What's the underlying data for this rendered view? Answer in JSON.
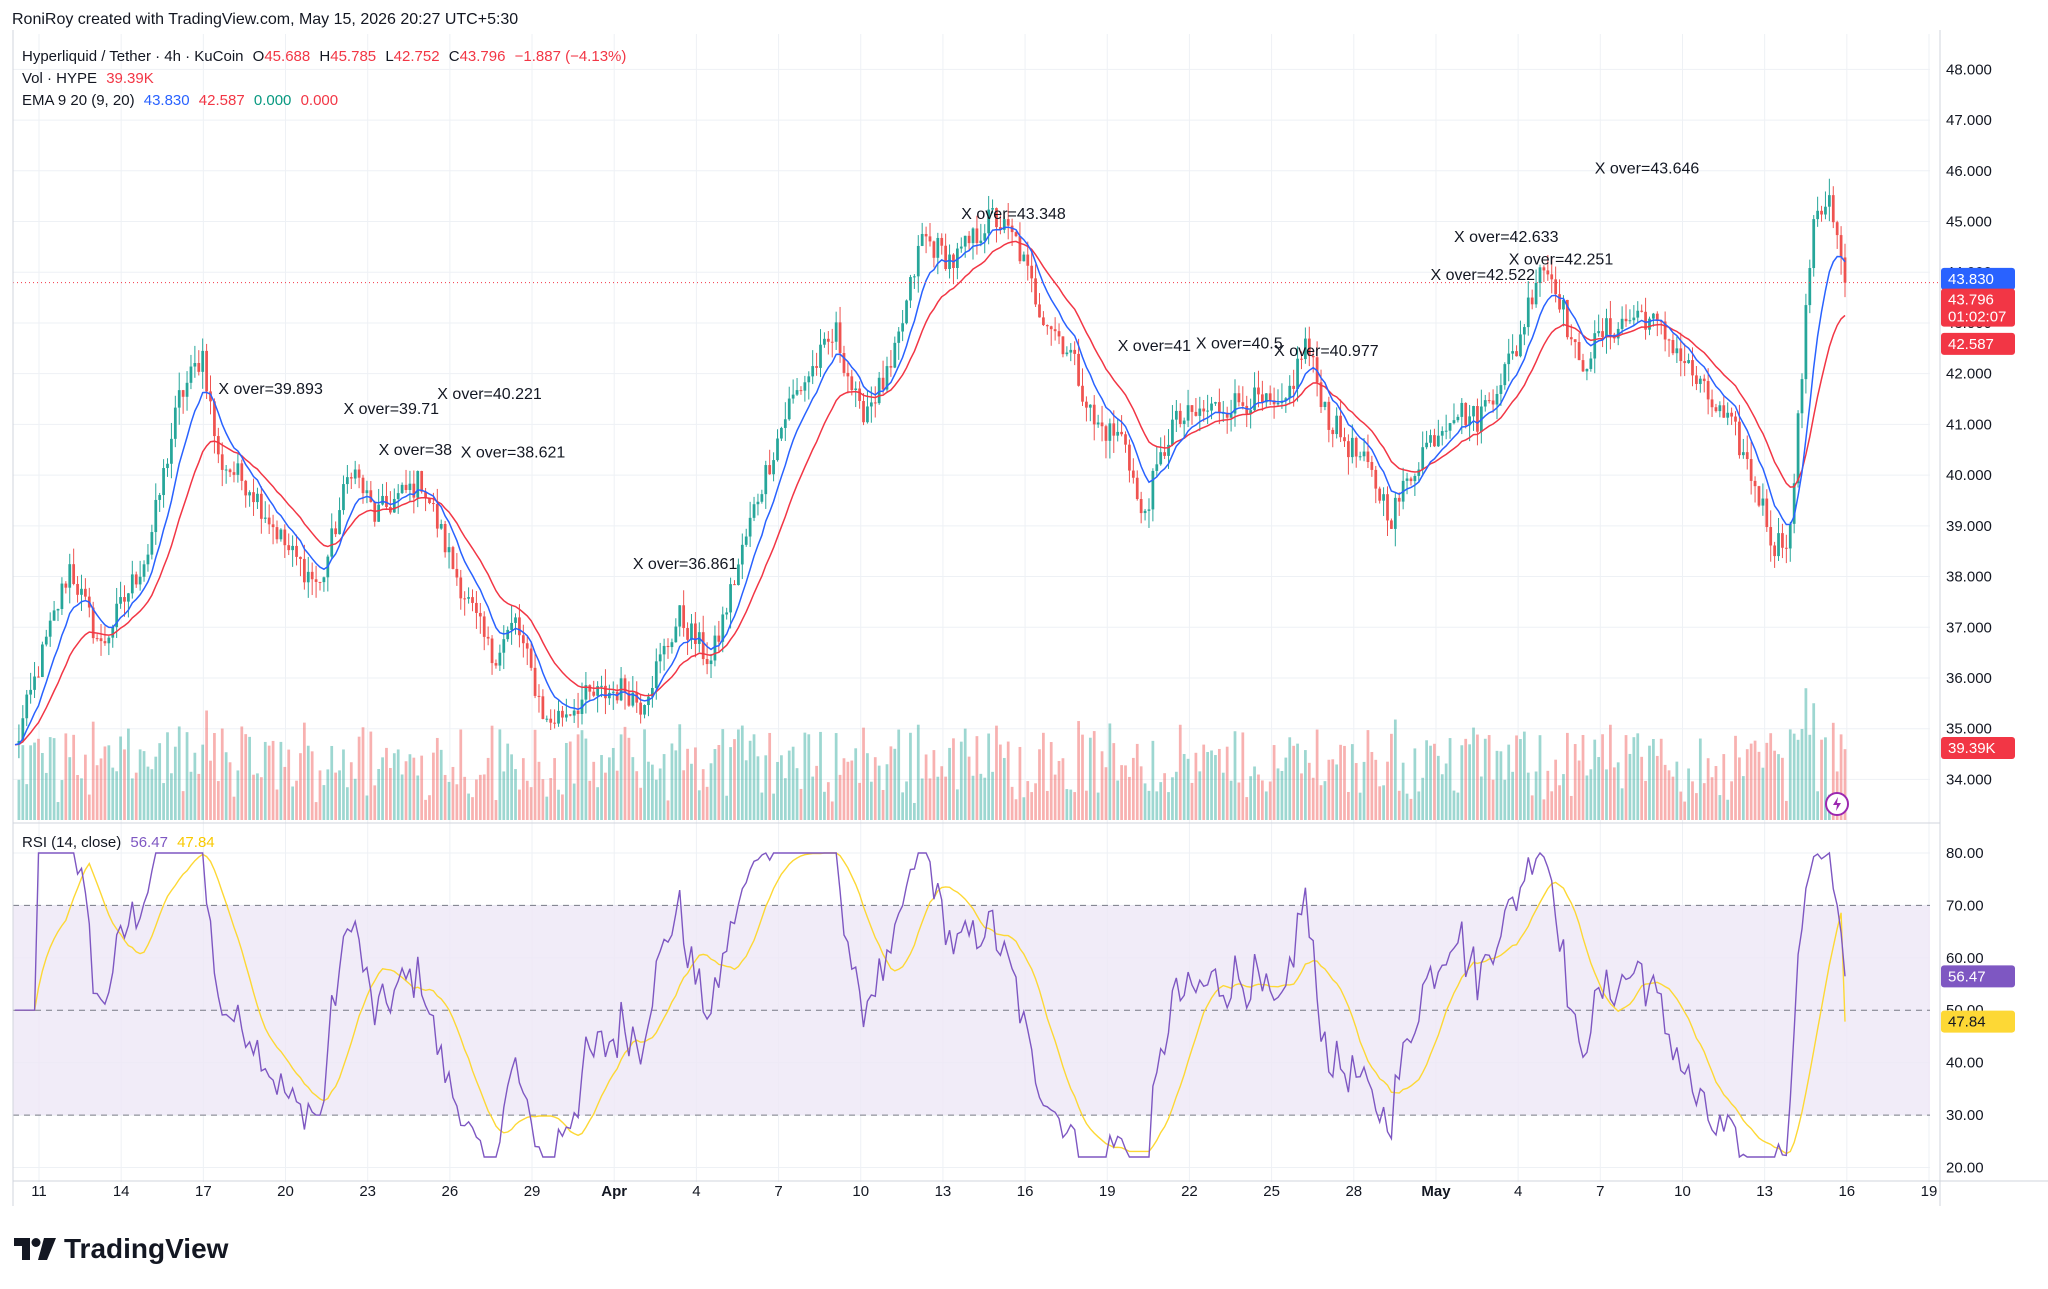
{
  "header": {
    "author_line": "RoniRoy created with TradingView.com, May 15, 2026 20:27 UTC+5:30",
    "symbol_line": "Hyperliquid / Tether · 4h · KuCoin",
    "open_label": "O",
    "open_value": "45.688",
    "high_label": "H",
    "high_value": "45.785",
    "low_label": "L",
    "low_value": "42.752",
    "close_label": "C",
    "close_value": "43.796",
    "change_value": "−1.887 (−4.13%)",
    "vol_label": "Vol · HYPE",
    "vol_value": "39.39K",
    "ema_label": "EMA 9 20 (9, 20)",
    "ema_values": [
      "43.830",
      "42.587",
      "0.000",
      "0.000"
    ],
    "rsi_label": "RSI (14, close)",
    "rsi_value": "56.47",
    "rsi_ma_value": "47.84"
  },
  "footer": {
    "brand": "TradingView"
  },
  "colors": {
    "up": "#26a69a",
    "down": "#ef5350",
    "ema_fast": "#2962ff",
    "ema_slow": "#f23645",
    "rsi": "#7e57c2",
    "rsi_ma": "#fdd835",
    "rsi_band": "#ede7f6",
    "grid": "#eef1f5"
  },
  "chart_data": {
    "type": "candlestick",
    "price_axis": {
      "ticks": [
        "48.000",
        "47.000",
        "46.000",
        "45.000",
        "44.000",
        "43.000",
        "42.000",
        "41.000",
        "40.000",
        "39.000",
        "38.000",
        "37.000",
        "36.000",
        "35.000",
        "34.000"
      ],
      "range": [
        33.2,
        48.5
      ]
    },
    "rsi_axis": {
      "ticks": [
        "80.00",
        "70.00",
        "60.00",
        "50.00",
        "40.00",
        "30.00",
        "20.00"
      ],
      "range": [
        18,
        84
      ],
      "bands": [
        30,
        70
      ],
      "mid": 50
    },
    "x_axis": {
      "labels": [
        "11",
        "14",
        "17",
        "20",
        "23",
        "26",
        "29",
        "Apr",
        "4",
        "7",
        "10",
        "13",
        "16",
        "19",
        "22",
        "25",
        "28",
        "May",
        "4",
        "7",
        "10",
        "13",
        "16",
        "19"
      ],
      "bold": [
        "Apr",
        "May"
      ]
    },
    "price_keypoints": [
      [
        0,
        34.6
      ],
      [
        6,
        36.2
      ],
      [
        14,
        38.2
      ],
      [
        22,
        36.6
      ],
      [
        34,
        38.5
      ],
      [
        42,
        41.5
      ],
      [
        48,
        42.4
      ],
      [
        52,
        40.3
      ],
      [
        60,
        39.8
      ],
      [
        70,
        38.5
      ],
      [
        78,
        37.8
      ],
      [
        86,
        40.2
      ],
      [
        92,
        39.2
      ],
      [
        104,
        39.9
      ],
      [
        112,
        38.2
      ],
      [
        122,
        36.4
      ],
      [
        128,
        37.1
      ],
      [
        136,
        35.1
      ],
      [
        146,
        35.6
      ],
      [
        156,
        35.8
      ],
      [
        160,
        35.5
      ],
      [
        170,
        37.2
      ],
      [
        178,
        36.3
      ],
      [
        190,
        39.6
      ],
      [
        198,
        41.4
      ],
      [
        210,
        42.8
      ],
      [
        216,
        41.2
      ],
      [
        224,
        42.0
      ],
      [
        232,
        44.7
      ],
      [
        240,
        44.2
      ],
      [
        250,
        45.1
      ],
      [
        256,
        44.6
      ],
      [
        262,
        43.3
      ],
      [
        270,
        42.4
      ],
      [
        276,
        41.0
      ],
      [
        284,
        40.7
      ],
      [
        288,
        39.1
      ],
      [
        296,
        41.0
      ],
      [
        306,
        41.3
      ],
      [
        316,
        41.5
      ],
      [
        324,
        41.2
      ],
      [
        330,
        42.6
      ],
      [
        336,
        41.1
      ],
      [
        346,
        40.1
      ],
      [
        352,
        39.2
      ],
      [
        360,
        40.5
      ],
      [
        368,
        41.3
      ],
      [
        374,
        41.1
      ],
      [
        384,
        42.5
      ],
      [
        390,
        44.2
      ],
      [
        394,
        43.8
      ],
      [
        400,
        42.1
      ],
      [
        406,
        42.8
      ],
      [
        416,
        43.2
      ],
      [
        424,
        42.6
      ],
      [
        432,
        41.6
      ],
      [
        440,
        40.8
      ],
      [
        446,
        39.6
      ],
      [
        450,
        38.6
      ],
      [
        454,
        38.9
      ],
      [
        460,
        45.2
      ],
      [
        464,
        45.4
      ],
      [
        468,
        43.8
      ]
    ],
    "total_candles": 469,
    "ema_values_last": {
      "ema9": 43.83,
      "ema20": 42.587
    },
    "price_labels": [
      {
        "text": "43.830",
        "color": "#2962ff"
      },
      {
        "text": "43.796",
        "sub": "01:02:07",
        "color": "#f23645"
      },
      {
        "text": "42.587",
        "color": "#f23645"
      },
      {
        "text": "39.39K",
        "color": "#f23645"
      },
      {
        "text": "56.47",
        "color": "#7e57c2"
      },
      {
        "text": "47.84",
        "color": "#fdd835"
      }
    ],
    "crossover_labels": [
      {
        "text": "X over=39.893",
        "price": 41.6,
        "candle": 52
      },
      {
        "text": "X over=39.71",
        "price": 41.2,
        "candle": 84
      },
      {
        "text": "X over=40.221",
        "price": 41.5,
        "candle": 108
      },
      {
        "text": "X over=38",
        "price": 40.4,
        "candle": 93
      },
      {
        "text": "X over=38.621",
        "price": 40.35,
        "candle": 114
      },
      {
        "text": "X over=36.861",
        "price": 38.15,
        "candle": 158
      },
      {
        "text": "X over=43.348",
        "price": 45.05,
        "candle": 242
      },
      {
        "text": "X over=41",
        "price": 42.45,
        "candle": 282
      },
      {
        "text": "X over=40.5",
        "price": 42.5,
        "candle": 302
      },
      {
        "text": "X over=40.977",
        "price": 42.35,
        "candle": 322
      },
      {
        "text": "X over=42.522",
        "price": 43.85,
        "candle": 362
      },
      {
        "text": "X over=42.633",
        "price": 44.6,
        "candle": 368
      },
      {
        "text": "X over=42.251",
        "price": 44.15,
        "candle": 382
      },
      {
        "text": "X over=43.646",
        "price": 45.95,
        "candle": 404
      }
    ]
  }
}
